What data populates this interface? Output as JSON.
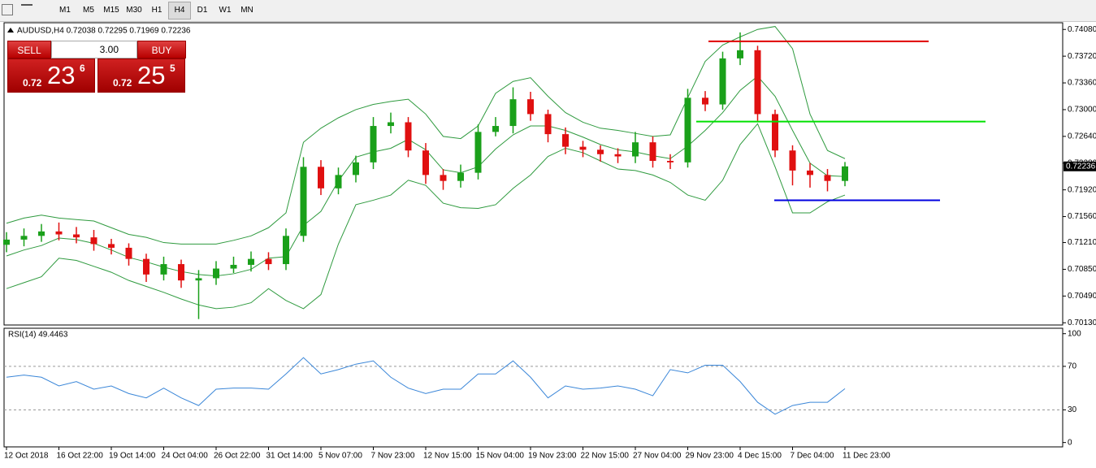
{
  "toolbar": {
    "timeframes": [
      "M1",
      "M5",
      "M15",
      "M30",
      "H1",
      "H4",
      "D1",
      "W1",
      "MN"
    ]
  },
  "trade_panel": {
    "sell": "SELL",
    "buy": "BUY",
    "volume": "3.00",
    "bid": {
      "big": "0.72",
      "pips": "23",
      "point": "6"
    },
    "ask": {
      "big": "0.72",
      "pips": "25",
      "point": "5"
    }
  },
  "chart_data": [
    {
      "type": "candlestick",
      "title": "AUDUSD,H4  0.72038 0.72295 0.71969 0.72236",
      "categories": [
        "12 Oct 2018",
        null,
        null,
        "16 Oct 22:00",
        null,
        null,
        "19 Oct 14:00",
        null,
        null,
        "24 Oct 04:00",
        null,
        null,
        "26 Oct 22:00",
        null,
        null,
        "31 Oct 14:00",
        null,
        null,
        "5 Nov 07:00",
        null,
        null,
        "7 Nov 23:00",
        null,
        null,
        "12 Nov 15:00",
        null,
        null,
        "15 Nov 04:00",
        null,
        null,
        "19 Nov 23:00",
        null,
        null,
        "22 Nov 15:00",
        null,
        null,
        "27 Nov 04:00",
        null,
        null,
        "29 Nov 23:00",
        null,
        null,
        "4 Dec 15:00",
        null,
        null,
        "7 Dec 04:00",
        null,
        null,
        "11 Dec 23:00"
      ],
      "open": [
        0.7118,
        0.7125,
        0.713,
        0.7136,
        0.7132,
        0.7128,
        0.7119,
        0.7114,
        0.7099,
        0.7078,
        0.7092,
        0.707,
        0.7073,
        0.7086,
        0.7091,
        0.7099,
        0.7092,
        0.713,
        0.7223,
        0.7194,
        0.7212,
        0.7229,
        0.7278,
        0.7283,
        0.7245,
        0.7212,
        0.7204,
        0.7215,
        0.727,
        0.7278,
        0.7314,
        0.7294,
        0.7267,
        0.725,
        0.7246,
        0.724,
        0.7237,
        0.7256,
        0.7231,
        0.7229,
        0.7316,
        0.7307,
        0.7369,
        0.738,
        0.7294,
        0.7245,
        0.7218,
        0.7212,
        0.7204
      ],
      "high": [
        0.7135,
        0.714,
        0.7146,
        0.7148,
        0.7142,
        0.7138,
        0.7126,
        0.712,
        0.7106,
        0.7102,
        0.7098,
        0.7084,
        0.7096,
        0.7102,
        0.7109,
        0.7108,
        0.714,
        0.7236,
        0.7232,
        0.7222,
        0.7238,
        0.729,
        0.7296,
        0.729,
        0.7255,
        0.722,
        0.7226,
        0.728,
        0.729,
        0.733,
        0.7324,
        0.73,
        0.7276,
        0.7258,
        0.7252,
        0.7248,
        0.727,
        0.7264,
        0.724,
        0.7328,
        0.7325,
        0.7378,
        0.7404,
        0.7386,
        0.73,
        0.7252,
        0.7228,
        0.722,
        0.72295
      ],
      "low": [
        0.7108,
        0.7116,
        0.7122,
        0.7124,
        0.712,
        0.711,
        0.7105,
        0.709,
        0.7068,
        0.707,
        0.706,
        0.7018,
        0.7064,
        0.708,
        0.7082,
        0.7084,
        0.7084,
        0.7122,
        0.7185,
        0.7186,
        0.7202,
        0.722,
        0.7268,
        0.7236,
        0.72,
        0.7192,
        0.7195,
        0.7206,
        0.7264,
        0.7268,
        0.7285,
        0.7256,
        0.724,
        0.7236,
        0.723,
        0.7228,
        0.7228,
        0.7222,
        0.722,
        0.7222,
        0.7298,
        0.73,
        0.736,
        0.7285,
        0.7236,
        0.7198,
        0.7195,
        0.719,
        0.71969
      ],
      "close": [
        0.7125,
        0.713,
        0.7136,
        0.7132,
        0.7128,
        0.7119,
        0.7114,
        0.7099,
        0.7078,
        0.7092,
        0.707,
        0.7073,
        0.7086,
        0.7091,
        0.7099,
        0.7092,
        0.713,
        0.7223,
        0.7194,
        0.7212,
        0.7229,
        0.7278,
        0.7283,
        0.7245,
        0.7212,
        0.7204,
        0.7215,
        0.727,
        0.7278,
        0.7314,
        0.7294,
        0.7267,
        0.725,
        0.7246,
        0.724,
        0.7237,
        0.7256,
        0.7231,
        0.7229,
        0.7316,
        0.7307,
        0.7369,
        0.738,
        0.7294,
        0.7245,
        0.7218,
        0.7212,
        0.7204,
        0.72236
      ],
      "up_color": "#1aa01a",
      "down_color": "#e01010",
      "bands": {
        "color": "#2e9a3e",
        "upper": [
          0.7147,
          0.7154,
          0.7158,
          0.7154,
          0.7152,
          0.715,
          0.7141,
          0.7132,
          0.7128,
          0.7121,
          0.7119,
          0.7119,
          0.7119,
          0.7124,
          0.713,
          0.7141,
          0.7161,
          0.7256,
          0.7275,
          0.7289,
          0.73,
          0.7307,
          0.7311,
          0.7314,
          0.7294,
          0.7264,
          0.7261,
          0.7278,
          0.7322,
          0.7338,
          0.7343,
          0.7318,
          0.7296,
          0.7283,
          0.7275,
          0.7272,
          0.7268,
          0.7264,
          0.7266,
          0.7316,
          0.7365,
          0.7387,
          0.7398,
          0.7408,
          0.7412,
          0.7382,
          0.7294,
          0.7245,
          0.7234
        ],
        "middle": [
          0.7103,
          0.7111,
          0.7117,
          0.7127,
          0.7125,
          0.712,
          0.7111,
          0.7101,
          0.7095,
          0.7088,
          0.7082,
          0.7078,
          0.7076,
          0.7079,
          0.7085,
          0.71,
          0.7102,
          0.7144,
          0.7163,
          0.7204,
          0.7236,
          0.7243,
          0.7248,
          0.726,
          0.7246,
          0.7219,
          0.7215,
          0.7223,
          0.7247,
          0.7266,
          0.7278,
          0.7278,
          0.7272,
          0.7263,
          0.7253,
          0.7246,
          0.7243,
          0.7238,
          0.7234,
          0.7251,
          0.7272,
          0.7296,
          0.7326,
          0.7345,
          0.7318,
          0.7272,
          0.7228,
          0.7211,
          0.721
        ],
        "lower": [
          0.7059,
          0.7067,
          0.7075,
          0.71,
          0.7097,
          0.7089,
          0.7081,
          0.707,
          0.7062,
          0.7054,
          0.7045,
          0.7037,
          0.7032,
          0.7034,
          0.704,
          0.7059,
          0.7043,
          0.7032,
          0.7051,
          0.7119,
          0.7172,
          0.7178,
          0.7185,
          0.7205,
          0.7198,
          0.7174,
          0.7168,
          0.7167,
          0.7172,
          0.7194,
          0.7212,
          0.7237,
          0.7248,
          0.7242,
          0.7231,
          0.722,
          0.7218,
          0.7212,
          0.7202,
          0.7185,
          0.7178,
          0.7205,
          0.7253,
          0.7281,
          0.7223,
          0.7161,
          0.7161,
          0.7176,
          0.7185
        ]
      },
      "levels": [
        {
          "value": 0.7392,
          "color": "#e00000"
        },
        {
          "value": 0.7284,
          "color": "#00e000"
        },
        {
          "value": 0.7178,
          "color": "#0000e0"
        }
      ],
      "current_price": 0.72236,
      "ylim": [
        0.701,
        0.7417
      ],
      "yticks": [
        {
          "value": 0.7408,
          "label": "0.74080"
        },
        {
          "value": 0.7372,
          "label": "0.73720"
        },
        {
          "value": 0.7336,
          "label": "0.73360"
        },
        {
          "value": 0.73,
          "label": "0.73000"
        },
        {
          "value": 0.7264,
          "label": "0.72640"
        },
        {
          "value": 0.7228,
          "label": "0.72280"
        },
        {
          "value": 0.7192,
          "label": "0.71920"
        },
        {
          "value": 0.7156,
          "label": "0.71560"
        },
        {
          "value": 0.7121,
          "label": "0.71210"
        },
        {
          "value": 0.7085,
          "label": "0.70850"
        },
        {
          "value": 0.7049,
          "label": "0.70490"
        },
        {
          "value": 0.7013,
          "label": "0.70130"
        }
      ]
    },
    {
      "type": "line",
      "title": "RSI(14) 49.4463",
      "color": "#3a86d8",
      "values": [
        60,
        62,
        60,
        52,
        56,
        49,
        52,
        45,
        41,
        50,
        41,
        34,
        49,
        50,
        50,
        49,
        63,
        78,
        63,
        67,
        72,
        75,
        60,
        50,
        45,
        49,
        49,
        63,
        63,
        75,
        60,
        41,
        52,
        49,
        50,
        52,
        49,
        43,
        67,
        64,
        71,
        71,
        56,
        37,
        26,
        34,
        37,
        37,
        49.4463
      ],
      "levels": [
        70,
        30
      ],
      "ylim": [
        -4,
        105
      ],
      "yticks": [
        100,
        70,
        30,
        0
      ]
    }
  ]
}
